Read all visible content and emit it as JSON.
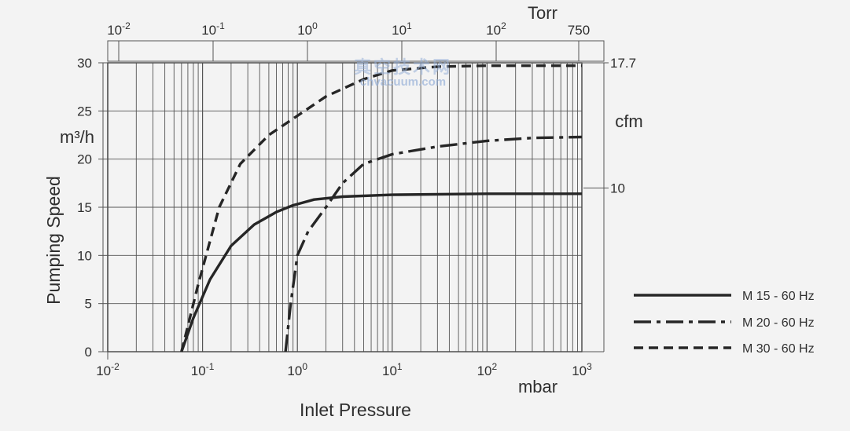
{
  "chart_data": {
    "type": "line",
    "xscale": "log",
    "xlim": [
      0.01,
      1000
    ],
    "ylim": [
      0,
      30
    ],
    "xlabel": "Inlet Pressure",
    "xunit": "mbar",
    "ylabel": "Pumping Speed",
    "yunit": "m³/h",
    "yticks": [
      0,
      5,
      10,
      15,
      20,
      25,
      30
    ],
    "xticks_bottom": [
      {
        "value": 0.01,
        "base": "10",
        "exp": "-2"
      },
      {
        "value": 0.1,
        "base": "10",
        "exp": "-1"
      },
      {
        "value": 1,
        "base": "10",
        "exp": "0"
      },
      {
        "value": 10,
        "base": "10",
        "exp": "1"
      },
      {
        "value": 100,
        "base": "10",
        "exp": "2"
      },
      {
        "value": 1000,
        "base": "10",
        "exp": "3"
      }
    ],
    "top_axis": {
      "unit": "Torr",
      "ticks": [
        {
          "value": 0.01,
          "base": "10",
          "exp": "-2"
        },
        {
          "value": 0.1,
          "base": "10",
          "exp": "-1"
        },
        {
          "value": 1,
          "base": "10",
          "exp": "0"
        },
        {
          "value": 10,
          "base": "10",
          "exp": "1"
        },
        {
          "value": 100,
          "base": "10",
          "exp": "2"
        },
        {
          "value": 750,
          "base": "750",
          "exp": ""
        }
      ]
    },
    "right_axis": {
      "unit": "cfm",
      "ticks": [
        {
          "label": "10",
          "y": 17.0
        },
        {
          "label": "17.7",
          "y": 30.0
        }
      ]
    },
    "series": [
      {
        "name": "M 15 - 60 Hz",
        "style": "solid",
        "x": [
          0.06,
          0.08,
          0.12,
          0.2,
          0.35,
          0.6,
          0.9,
          1.5,
          3,
          10,
          100,
          1000
        ],
        "y": [
          0,
          3.5,
          7.5,
          11,
          13.2,
          14.5,
          15.2,
          15.8,
          16.1,
          16.3,
          16.4,
          16.4
        ]
      },
      {
        "name": "M 20 - 60 Hz",
        "style": "dashdot",
        "x": [
          0.75,
          0.85,
          1,
          1.3,
          2,
          3,
          5,
          10,
          30,
          100,
          300,
          1000
        ],
        "y": [
          0,
          5,
          10,
          12.5,
          15,
          17.5,
          19.5,
          20.5,
          21.3,
          21.9,
          22.2,
          22.3
        ]
      },
      {
        "name": "M 30 - 60 Hz",
        "style": "dash",
        "x": [
          0.06,
          0.09,
          0.15,
          0.25,
          0.5,
          1,
          2,
          5,
          10,
          30,
          100,
          1000
        ],
        "y": [
          0,
          7,
          15,
          19.5,
          22.5,
          24.5,
          26.5,
          28.3,
          29.2,
          29.6,
          29.7,
          29.7
        ]
      }
    ],
    "legend_position": "bottom-right",
    "watermark": {
      "line1": "真空技术网",
      "line2": "chvacuum.com"
    }
  }
}
